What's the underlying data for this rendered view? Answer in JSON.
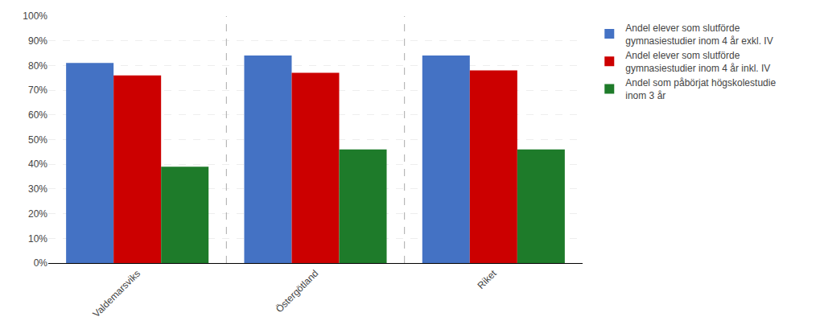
{
  "chart_data": {
    "type": "bar",
    "categories": [
      "Valdemarsviks",
      "Östergötland",
      "Riket"
    ],
    "series": [
      {
        "name": "Andel elever som slutförde\ngymnasiestudier inom 4 år exkl. IV",
        "color": "#4472C4",
        "values": [
          0.81,
          0.84,
          0.84
        ]
      },
      {
        "name": "Andel elever som slutförde\ngymnasiestudier inom 4 år inkl. IV",
        "color": "#CC0000",
        "values": [
          0.76,
          0.77,
          0.78
        ]
      },
      {
        "name": "Andel som påbörjat högskolestudie\ninom 3 år",
        "color": "#1E7B2A",
        "values": [
          0.39,
          0.46,
          0.46
        ]
      }
    ],
    "ylim": [
      0,
      1.0
    ],
    "yticks": [
      {
        "value": 0.0,
        "label": "0%"
      },
      {
        "value": 0.1,
        "label": "10%"
      },
      {
        "value": 0.2,
        "label": "20%"
      },
      {
        "value": 0.3,
        "label": "30%"
      },
      {
        "value": 0.4,
        "label": "40%"
      },
      {
        "value": 0.5,
        "label": "50%"
      },
      {
        "value": 0.6,
        "label": "60%"
      },
      {
        "value": 0.7,
        "label": "70%"
      },
      {
        "value": 0.8,
        "label": "80%"
      },
      {
        "value": 0.9,
        "label": "90%"
      },
      {
        "value": 1.0,
        "label": "100%"
      }
    ],
    "grid": true,
    "legend": "right"
  }
}
